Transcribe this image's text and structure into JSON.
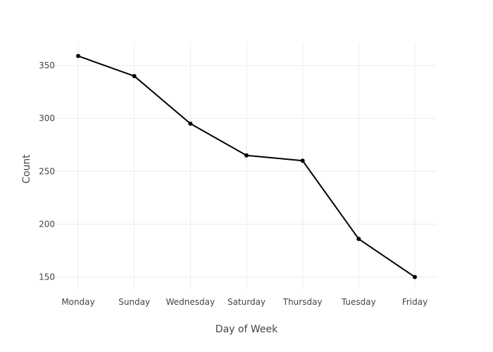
{
  "chart_data": {
    "type": "line",
    "title": "",
    "xlabel": "Day of Week",
    "ylabel": "Count",
    "categories": [
      "Monday",
      "Sunday",
      "Wednesday",
      "Saturday",
      "Thursday",
      "Tuesday",
      "Friday"
    ],
    "series": [
      {
        "values": [
          359,
          340,
          295,
          265,
          260,
          186,
          150
        ],
        "color": "#000000"
      }
    ],
    "yticks": [
      150,
      200,
      250,
      300,
      350
    ],
    "ylim": [
      139,
      372
    ],
    "grid": true,
    "legend": "none"
  }
}
